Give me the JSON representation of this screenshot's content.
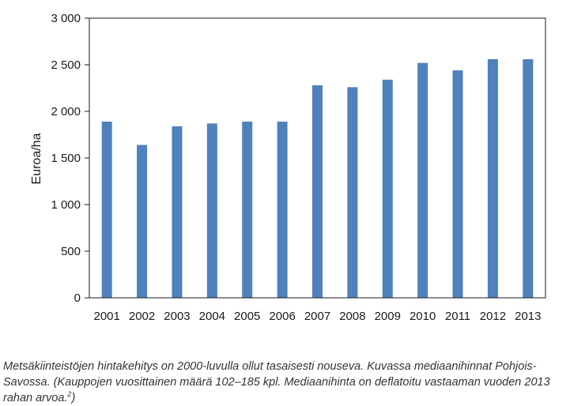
{
  "chart_data": {
    "type": "bar",
    "title": "",
    "xlabel": "",
    "ylabel": "Euroa/ha",
    "categories": [
      "2001",
      "2002",
      "2003",
      "2004",
      "2005",
      "2006",
      "2007",
      "2008",
      "2009",
      "2010",
      "2011",
      "2012",
      "2013"
    ],
    "values": [
      1890,
      1640,
      1840,
      1870,
      1890,
      1890,
      2280,
      2260,
      2340,
      2520,
      2440,
      2560,
      2560
    ],
    "ylim": [
      0,
      3000
    ],
    "yticks": [
      0,
      500,
      1000,
      1500,
      2000,
      2500,
      3000
    ],
    "ytick_labels": [
      "0",
      "500",
      "1 000",
      "1 500",
      "2 000",
      "2 500",
      "3 000"
    ],
    "grid": false,
    "legend": "none",
    "bar_color": "#4f81bd"
  },
  "caption": {
    "text": "Metsäkiinteistöjen hintakehitys on 2000-luvulla ollut tasaisesti nouseva. Kuvassa mediaanihinnat Pohjois-Savossa. (Kauppojen vuosittainen määrä 102–185 kpl. Mediaanihinta on deflatoitu vastaaman vuoden 2013 rahan arvoa.",
    "footnote_mark": "2",
    "closing": ")"
  }
}
